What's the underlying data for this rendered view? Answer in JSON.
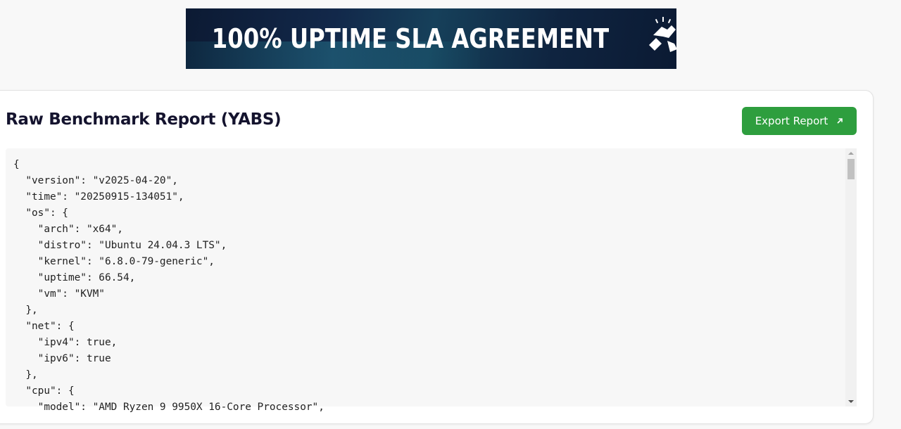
{
  "banner": {
    "text": "100% UPTIME SLA AGREEMENT",
    "icon": "handshake-icon"
  },
  "report": {
    "title": "Raw Benchmark Report (YABS)",
    "export_label": "Export Report",
    "export_icon": "arrow-up-right-icon",
    "accent": "#2e9e3e",
    "code_lines": [
      "{",
      "  \"version\": \"v2025-04-20\",",
      "  \"time\": \"20250915-134051\",",
      "  \"os\": {",
      "    \"arch\": \"x64\",",
      "    \"distro\": \"Ubuntu 24.04.3 LTS\",",
      "    \"kernel\": \"6.8.0-79-generic\",",
      "    \"uptime\": 66.54,",
      "    \"vm\": \"KVM\"",
      "  },",
      "  \"net\": {",
      "    \"ipv4\": true,",
      "    \"ipv6\": true",
      "  },",
      "  \"cpu\": {",
      "    \"model\": \"AMD Ryzen 9 9950X 16-Core Processor\","
    ]
  }
}
